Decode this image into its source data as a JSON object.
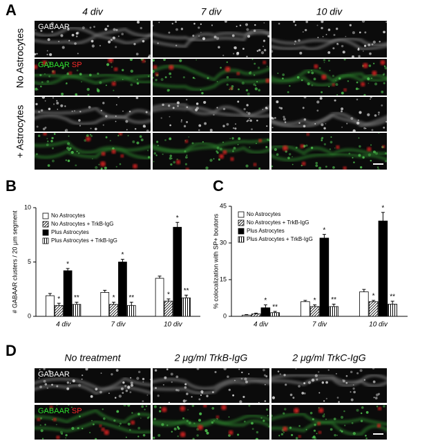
{
  "panel_a": {
    "letter": "A",
    "columns": [
      "4 div",
      "7 div",
      "10 div"
    ],
    "rows": [
      "No Astrocytes",
      "+ Astrocytes"
    ],
    "channel_label": "GABAAR",
    "merge_labels": [
      "GABAAR",
      "SP"
    ]
  },
  "chart_data": [
    {
      "letter": "B",
      "type": "bar",
      "ylabel": "# GABAAR clusters / 20 μm segment",
      "categories": [
        "4 div",
        "7 div",
        "10 div"
      ],
      "ylim": [
        0,
        10
      ],
      "yticks": [
        0,
        5,
        10
      ],
      "series": [
        {
          "name": "No Astrocytes",
          "color": "#ffffff",
          "values": [
            1.9,
            2.2,
            3.5
          ],
          "errors": [
            0.2,
            0.2,
            0.2
          ]
        },
        {
          "name": "No Astrocytes + TrkB-IgG",
          "color": "#ffffff",
          "hatch": "diagonal",
          "values": [
            1.0,
            1.1,
            1.4
          ],
          "errors": [
            0.2,
            0.2,
            0.2
          ],
          "significance": [
            "*",
            "*",
            "*"
          ]
        },
        {
          "name": "Plus Astrocytes",
          "color": "#000000",
          "values": [
            4.2,
            5.0,
            8.2
          ],
          "errors": [
            0.2,
            0.25,
            0.45
          ],
          "significance": [
            "*",
            "*",
            "*"
          ]
        },
        {
          "name": "Plus Astrocytes + TrkB-IgG",
          "color": "#ffffff",
          "hatch": "vertical",
          "values": [
            1.1,
            1.0,
            1.7
          ],
          "errors": [
            0.2,
            0.3,
            0.25
          ],
          "significance": [
            "**",
            "**",
            "**"
          ]
        }
      ]
    },
    {
      "letter": "C",
      "type": "bar",
      "ylabel": "% colocalization with SP+ boutons",
      "categories": [
        "4 div",
        "7 div",
        "10 div"
      ],
      "ylim": [
        0,
        45
      ],
      "yticks": [
        0,
        15,
        30,
        45
      ],
      "series": [
        {
          "name": "No Astrocytes",
          "color": "#ffffff",
          "values": [
            0.5,
            6,
            10
          ],
          "errors": [
            0.2,
            0.5,
            1
          ]
        },
        {
          "name": "No Astrocytes + TrkB-IgG",
          "color": "#ffffff",
          "hatch": "diagonal",
          "values": [
            1,
            4,
            6
          ],
          "errors": [
            0.3,
            0.7,
            0.5
          ],
          "significance": [
            null,
            "*",
            "*"
          ]
        },
        {
          "name": "Plus Astrocytes",
          "color": "#000000",
          "values": [
            3.5,
            32,
            39
          ],
          "errors": [
            1.2,
            1.5,
            3.5
          ],
          "significance": [
            "*",
            "*",
            "*"
          ]
        },
        {
          "name": "Plus Astrocytes + TrkB-IgG",
          "color": "#ffffff",
          "hatch": "vertical",
          "values": [
            1.5,
            4,
            5
          ],
          "errors": [
            0.5,
            1,
            1.2
          ],
          "significance": [
            "**",
            "**",
            "**"
          ]
        }
      ]
    }
  ],
  "panel_d": {
    "letter": "D",
    "columns": [
      "No treatment",
      "2 μg/ml TrkB-IgG",
      "2 μg/ml TrkC-IgG"
    ],
    "channel_label": "GABAAR",
    "merge_labels": [
      "GABAAR",
      "SP"
    ]
  }
}
